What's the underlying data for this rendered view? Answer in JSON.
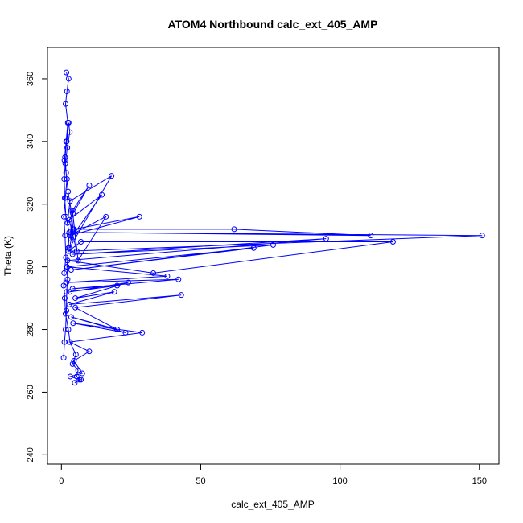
{
  "chart_data": {
    "type": "scatter",
    "style": "points-and-lines",
    "title": "ATOM4 Northbound calc_ext_405_AMP",
    "xlabel": "calc_ext_405_AMP",
    "ylabel": "Theta (K)",
    "xlim": [
      -5,
      157
    ],
    "ylim": [
      237,
      370
    ],
    "xticks": [
      0,
      50,
      100,
      150
    ],
    "yticks": [
      240,
      260,
      280,
      300,
      320,
      340,
      360
    ],
    "grid": false,
    "legend": "none",
    "color": "#0000ff",
    "series": [
      {
        "x": [
          0.8,
          1.1,
          1.5,
          1.8,
          1.9,
          2.2,
          2.0,
          2.5,
          2.8,
          1.6,
          1.2,
          1.0,
          1.4,
          2.1,
          3.0,
          2.6,
          1.9,
          1.3,
          1.7,
          2.4,
          3.5,
          4.2,
          2.9,
          18.0,
          3.1,
          2.2,
          10.0,
          4.0,
          3.3,
          14.5,
          2.8,
          5.5,
          4.1,
          6.0,
          16.0,
          3.0,
          28.0,
          4.5,
          62.0,
          111.0,
          4.0,
          151.0,
          2.5,
          7.0,
          119.0,
          33.0,
          2.2,
          95.0,
          4.0,
          76.0,
          3.5,
          69.0,
          2.0,
          38.0,
          1.8,
          42.0,
          4.0,
          20.0,
          3.0,
          24.0,
          5.0,
          19.0,
          2.8,
          43.0,
          5.0,
          20.0,
          3.5,
          23.0,
          4.2,
          29.0,
          3.0,
          10.0,
          4.5,
          7.5,
          3.2,
          6.5,
          4.8,
          7.0,
          5.5,
          6.0,
          4.0,
          5.2,
          3.1,
          2.5,
          1.5,
          1.2,
          0.8,
          1.0,
          1.6,
          1.3,
          0.9,
          1.4,
          2.0,
          1.1,
          1.7,
          2.3,
          1.5,
          2.0,
          2.6,
          1.8
        ],
        "y": [
          271,
          276,
          280,
          286,
          292,
          296,
          300,
          306,
          311,
          316,
          322,
          328,
          333,
          338,
          343,
          346,
          340,
          335,
          330,
          324,
          318,
          312,
          306,
          329,
          321,
          314,
          326,
          318,
          309,
          323,
          315,
          305,
          317,
          302,
          316,
          310,
          316,
          312,
          312,
          310,
          311,
          310,
          305,
          308,
          308,
          298,
          302,
          309,
          304,
          307,
          299,
          306,
          300,
          297,
          295,
          296,
          293,
          294,
          292,
          295,
          290,
          292,
          288,
          291,
          287,
          280,
          284,
          279,
          282,
          279,
          276,
          273,
          270,
          266,
          265,
          264,
          263,
          264,
          265,
          267,
          269,
          272,
          276,
          280,
          285,
          290,
          294,
          298,
          303,
          310,
          316,
          322,
          328,
          334,
          340,
          346,
          352,
          356,
          360,
          362
        ]
      }
    ]
  }
}
